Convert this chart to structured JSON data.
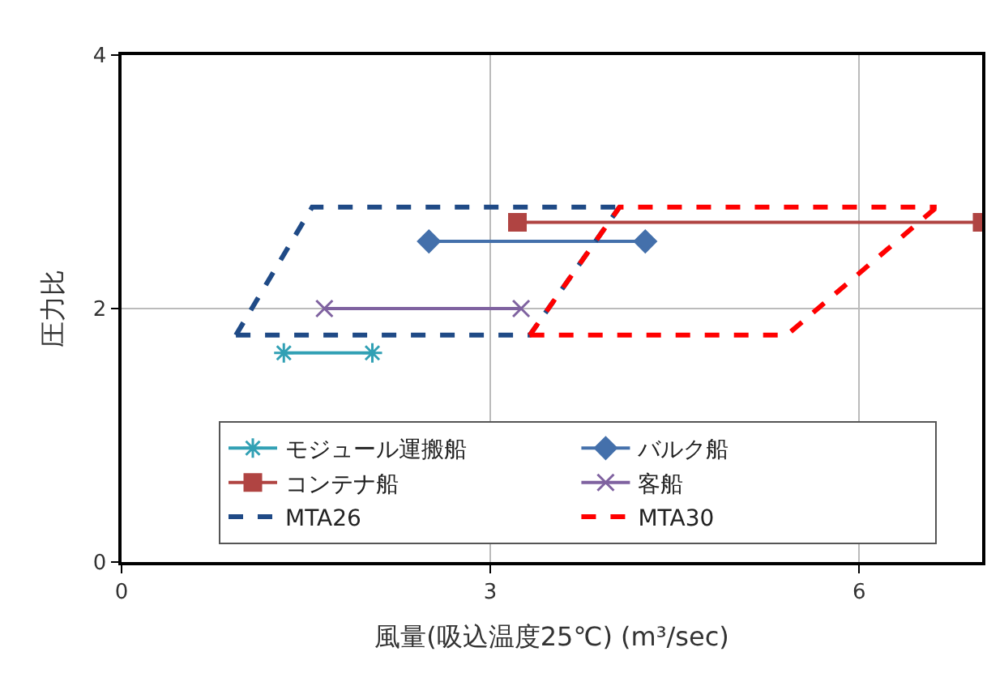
{
  "chart_data": {
    "type": "line",
    "xlabel": "風量(吸込温度25℃) (m³/sec)",
    "ylabel": "圧力比",
    "xlim": [
      0,
      7
    ],
    "xticks": [
      0,
      3,
      6
    ],
    "ylim": [
      0,
      4
    ],
    "yticks": [
      0,
      2,
      4
    ],
    "grid": true,
    "legend": "bottom",
    "series": [
      {
        "name": "モジュール運搬船",
        "color": "#31a0b4",
        "marker": "cross",
        "line_style": "solid",
        "x": [
          1.32,
          2.04
        ],
        "values": [
          1.65,
          1.65
        ]
      },
      {
        "name": "バルク船",
        "color": "#4470ab",
        "marker": "diamond",
        "line_style": "solid",
        "x": [
          2.5,
          4.26
        ],
        "values": [
          2.53,
          2.53
        ]
      },
      {
        "name": "コンテナ船",
        "color": "#b04442",
        "marker": "square",
        "line_style": "solid",
        "x": [
          3.22,
          7
        ],
        "values": [
          2.68,
          2.68
        ]
      },
      {
        "name": "客船",
        "color": "#7f62a0",
        "marker": "cross",
        "line_style": "solid",
        "x": [
          1.65,
          3.25
        ],
        "values": [
          2.0,
          2.0
        ]
      },
      {
        "name": "MTA26",
        "color": "#1f4a86",
        "marker": "none",
        "line_style": "dashed",
        "x": [
          0.93,
          1.55,
          4.05
        ],
        "values": [
          1.79,
          2.8,
          2.8
        ]
      },
      {
        "color": "#1f4a86",
        "marker": "none",
        "line_style": "dashed",
        "x": [
          0.93,
          3.32,
          4.05
        ],
        "values": [
          1.79,
          1.79,
          2.8
        ]
      },
      {
        "name": "MTA30",
        "color": "#ff0000",
        "marker": "none",
        "line_style": "dashed",
        "x": [
          3.32,
          4.05,
          6.63
        ],
        "values": [
          1.79,
          2.8,
          2.8
        ]
      },
      {
        "color": "#ff0000",
        "marker": "none",
        "line_style": "dashed",
        "x": [
          3.32,
          5.41,
          6.63
        ],
        "values": [
          1.79,
          1.79,
          2.8
        ]
      }
    ]
  }
}
